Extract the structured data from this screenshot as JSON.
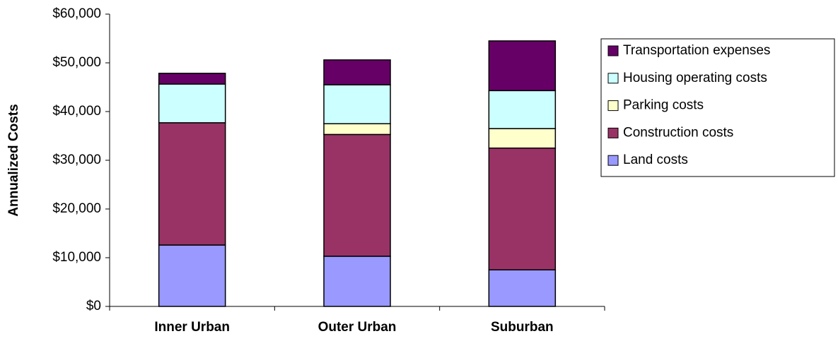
{
  "chart_data": {
    "type": "stacked_bar",
    "y_label": "Annualized Costs",
    "categories": [
      "Inner Urban",
      "Outer Urban",
      "Suburban"
    ],
    "series": [
      {
        "name": "Land costs",
        "color": "#9999ff",
        "values": [
          12600,
          10300,
          7500
        ]
      },
      {
        "name": "Construction costs",
        "color": "#993366",
        "values": [
          25100,
          25000,
          25000
        ]
      },
      {
        "name": "Parking costs",
        "color": "#ffffcc",
        "values": [
          0,
          2200,
          4000
        ]
      },
      {
        "name": "Housing operating costs",
        "color": "#ccffff",
        "values": [
          7950,
          8000,
          7800
        ]
      },
      {
        "name": "Transportation expenses",
        "color": "#660066",
        "values": [
          2200,
          5100,
          10200
        ]
      }
    ],
    "ylim": [
      0,
      60000
    ],
    "yticks": [
      {
        "value": 0,
        "label": "$0"
      },
      {
        "value": 10000,
        "label": "$10,000"
      },
      {
        "value": 20000,
        "label": "$20,000"
      },
      {
        "value": 30000,
        "label": "$30,000"
      },
      {
        "value": 40000,
        "label": "$40,000"
      },
      {
        "value": 50000,
        "label": "$50,000"
      },
      {
        "value": 60000,
        "label": "$60,000"
      }
    ],
    "legend_position": "right"
  }
}
